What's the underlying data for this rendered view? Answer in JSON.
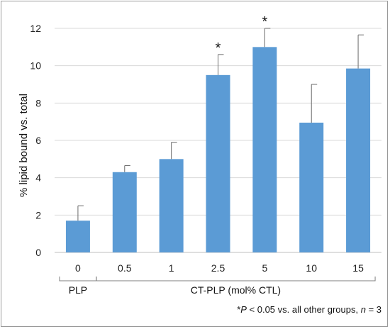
{
  "chart_data": {
    "type": "bar",
    "title": "",
    "ylabel": "% lipid bound vs. total",
    "xlabel": "",
    "ylim": [
      0,
      12
    ],
    "yticks": [
      0,
      2,
      4,
      6,
      8,
      10,
      12
    ],
    "grid": true,
    "categories": [
      "0",
      "0.5",
      "1",
      "2.5",
      "5",
      "10",
      "15"
    ],
    "values": [
      1.7,
      4.3,
      5.0,
      9.5,
      11.0,
      6.95,
      9.85
    ],
    "errors": [
      0.8,
      0.35,
      0.9,
      1.1,
      1.0,
      2.05,
      1.8
    ],
    "significant": [
      "",
      "",
      "",
      "*",
      "*",
      "",
      ""
    ],
    "bar_color": "#5b9bd5",
    "groups": [
      {
        "label": "PLP",
        "from": 0,
        "to": 0
      },
      {
        "label": "CT-PLP (mol% CTL)",
        "from": 1,
        "to": 6
      }
    ],
    "footnote": {
      "prefix": "*",
      "p": "P",
      "mid": " < 0.05 vs.  all other groups, ",
      "n": "n",
      "suffix": " = 3"
    }
  }
}
